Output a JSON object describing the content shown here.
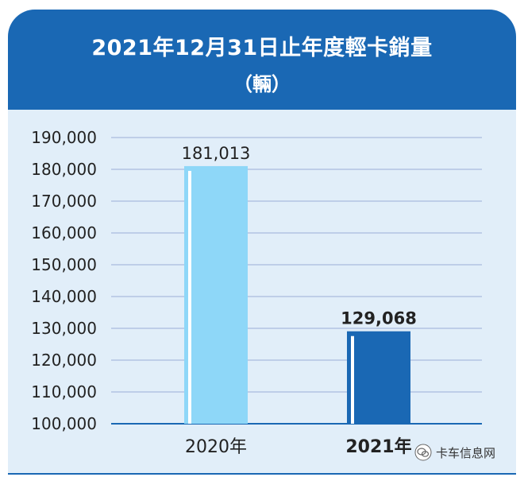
{
  "header": {
    "title": "2021年12月31日止年度輕卡銷量",
    "unit": "（輛）"
  },
  "watermark": {
    "text": "卡车信息网",
    "icon": "wechat-icon"
  },
  "colors": {
    "header_bg": "#1a68b4",
    "panel_bg": "#e1eef9",
    "bar_2020": "#8ed7f8",
    "bar_2021": "#1a68b4",
    "gridline": "#9aaed6",
    "text": "#222222"
  },
  "chart_data": {
    "type": "bar",
    "title": "2021年12月31日止年度輕卡銷量",
    "subtitle": "（輛）",
    "categories": [
      "2020年",
      "2021年"
    ],
    "values": [
      181013,
      129068
    ],
    "value_labels": [
      "181,013",
      "129,068"
    ],
    "ylim": [
      100000,
      190000
    ],
    "yticks": [
      100000,
      110000,
      120000,
      130000,
      140000,
      150000,
      160000,
      170000,
      180000,
      190000
    ],
    "ytick_labels": [
      "100,000",
      "110,000",
      "120,000",
      "130,000",
      "140,000",
      "150,000",
      "160,000",
      "170,000",
      "180,000",
      "190,000"
    ],
    "grid": true,
    "legend": "none"
  }
}
